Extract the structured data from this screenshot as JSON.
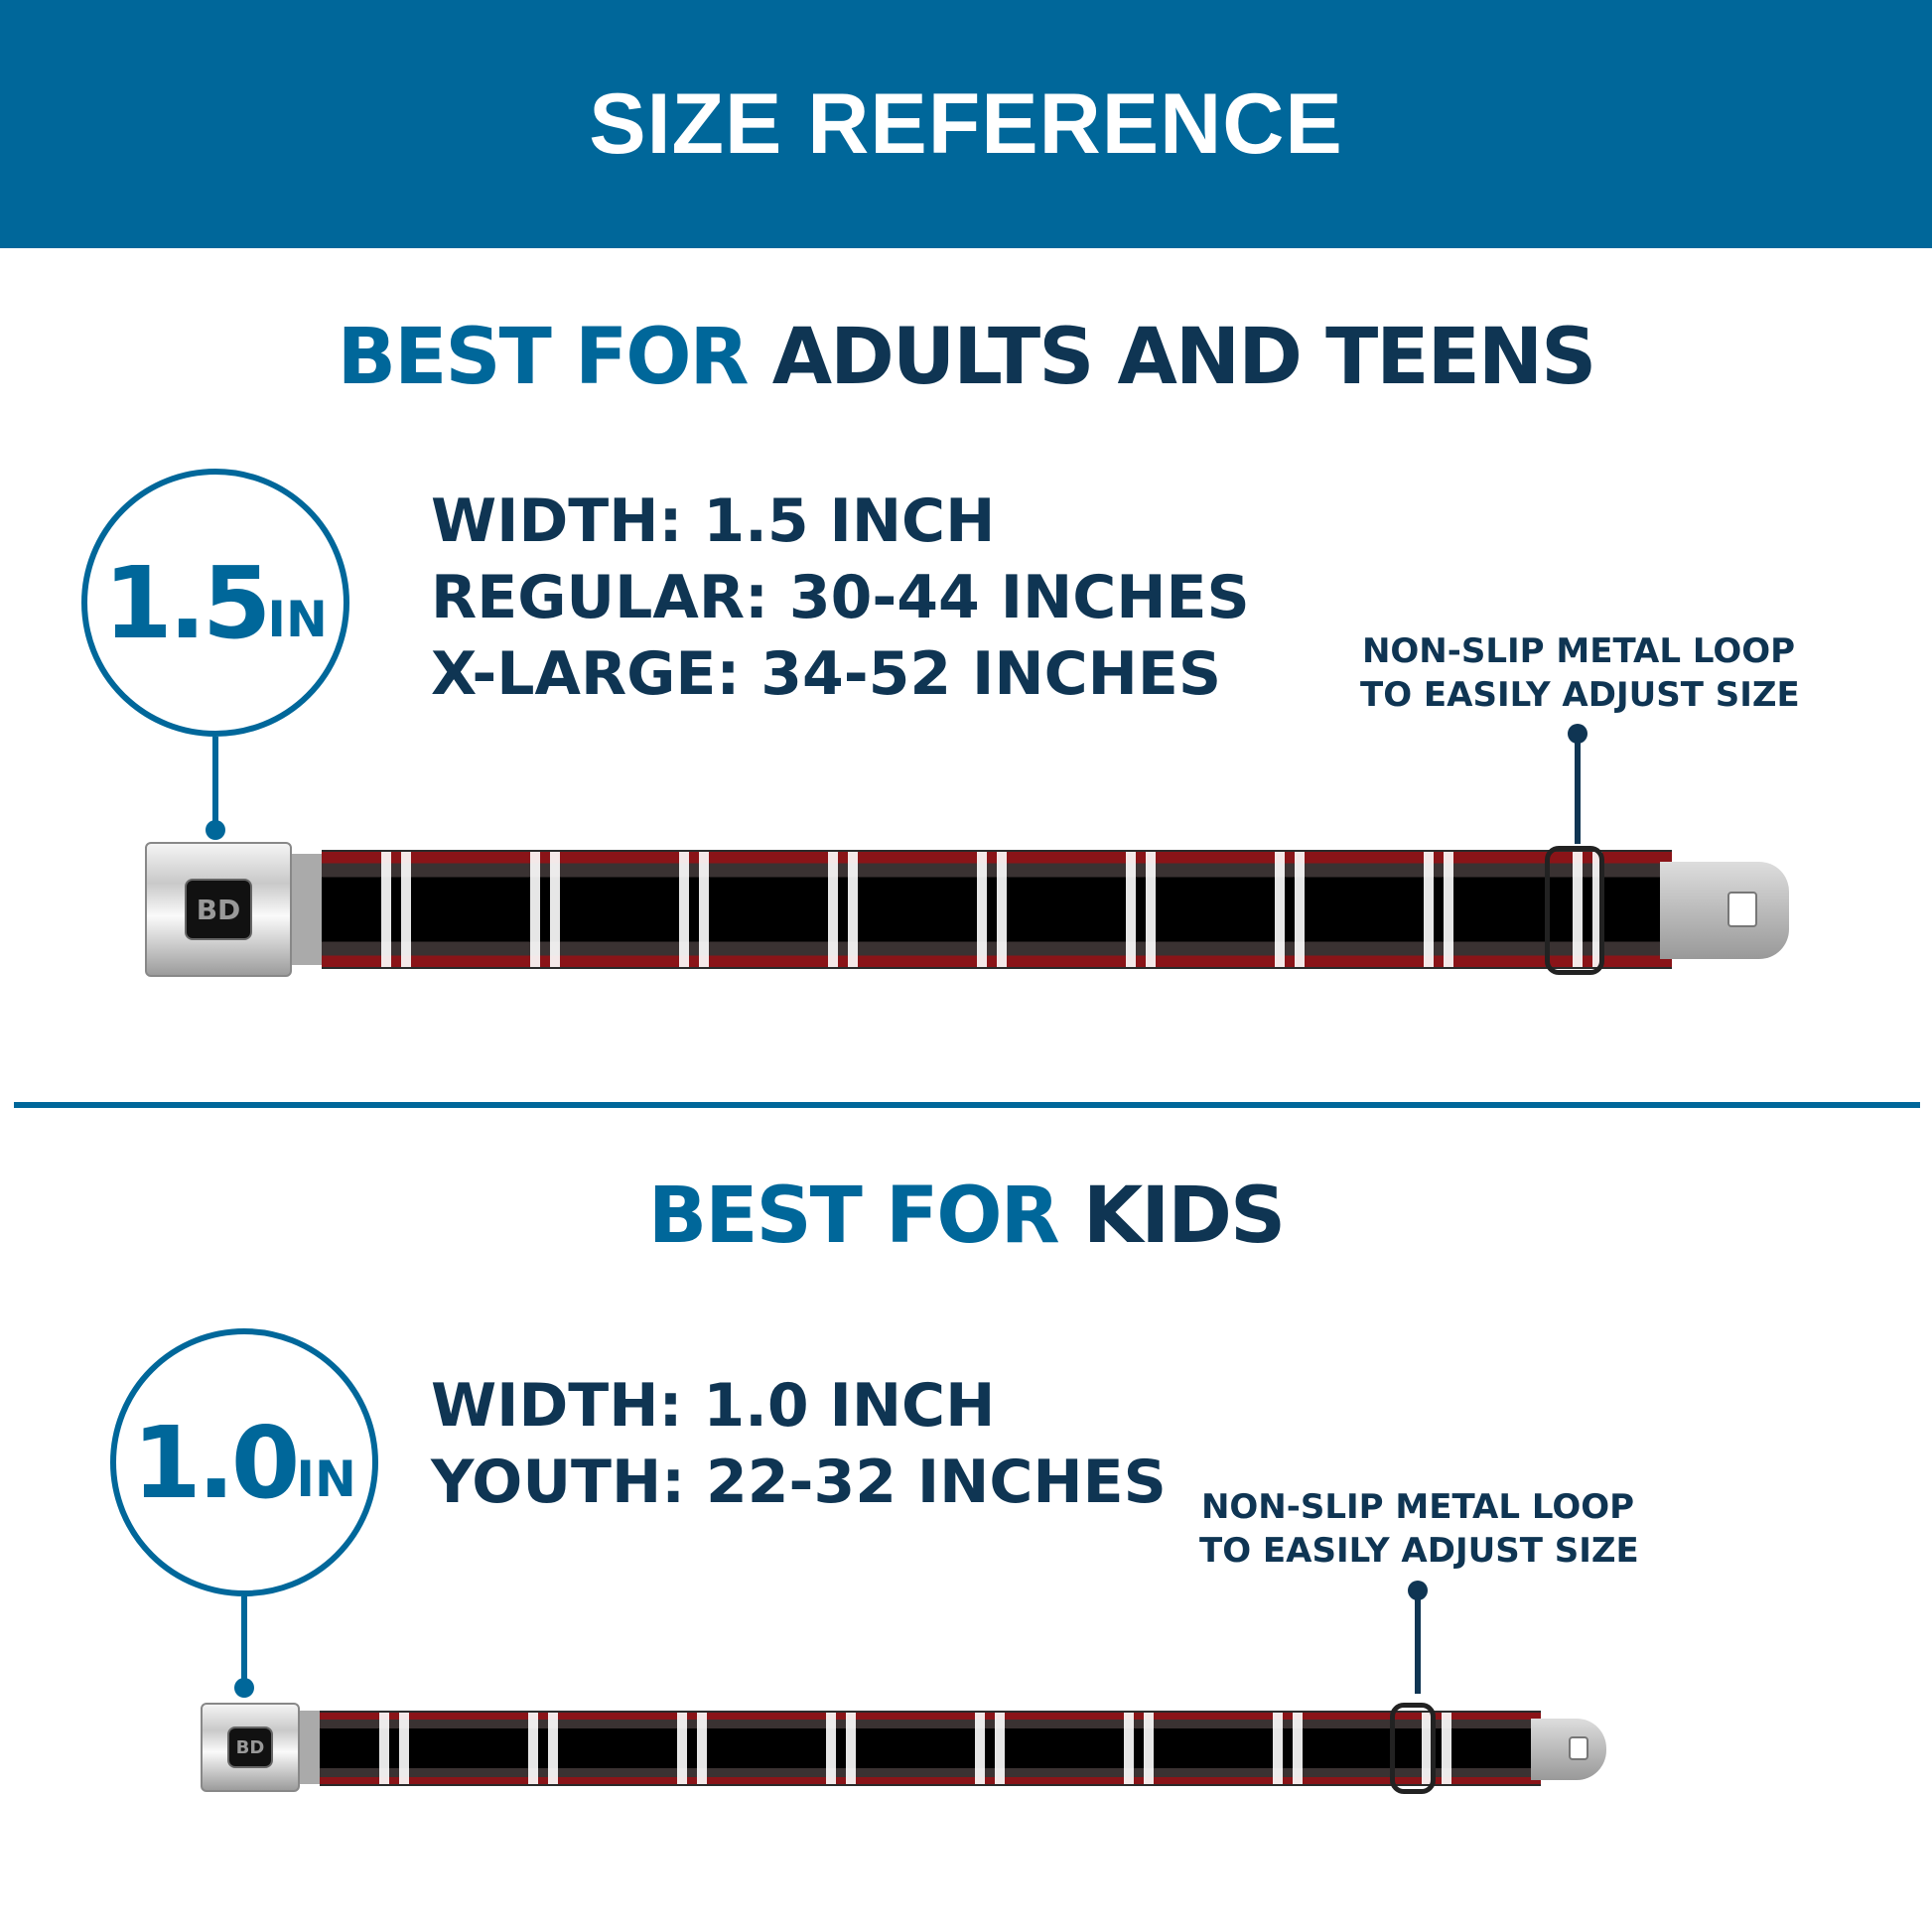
{
  "header": {
    "title": "SIZE REFERENCE"
  },
  "adults": {
    "heading_accent": "BEST FOR",
    "heading_main": "ADULTS AND TEENS",
    "badge_number": "1.5",
    "badge_unit": "IN",
    "specs": [
      "WIDTH: 1.5 INCH",
      "REGULAR: 30-44 INCHES",
      "X-LARGE: 34-52 INCHES"
    ],
    "note": [
      "NON-SLIP METAL LOOP",
      "TO EASILY ADJUST SIZE"
    ],
    "logo": "BD"
  },
  "kids": {
    "heading_accent": "BEST FOR",
    "heading_main": "KIDS",
    "badge_number": "1.0",
    "badge_unit": "IN",
    "specs": [
      "WIDTH: 1.0 INCH",
      "YOUTH: 22-32 INCHES"
    ],
    "note": [
      "NON-SLIP METAL LOOP",
      "TO EASILY ADJUST SIZE"
    ],
    "logo": "BD"
  },
  "colors": {
    "brand_blue": "#00679a",
    "navy": "#0f3553"
  }
}
